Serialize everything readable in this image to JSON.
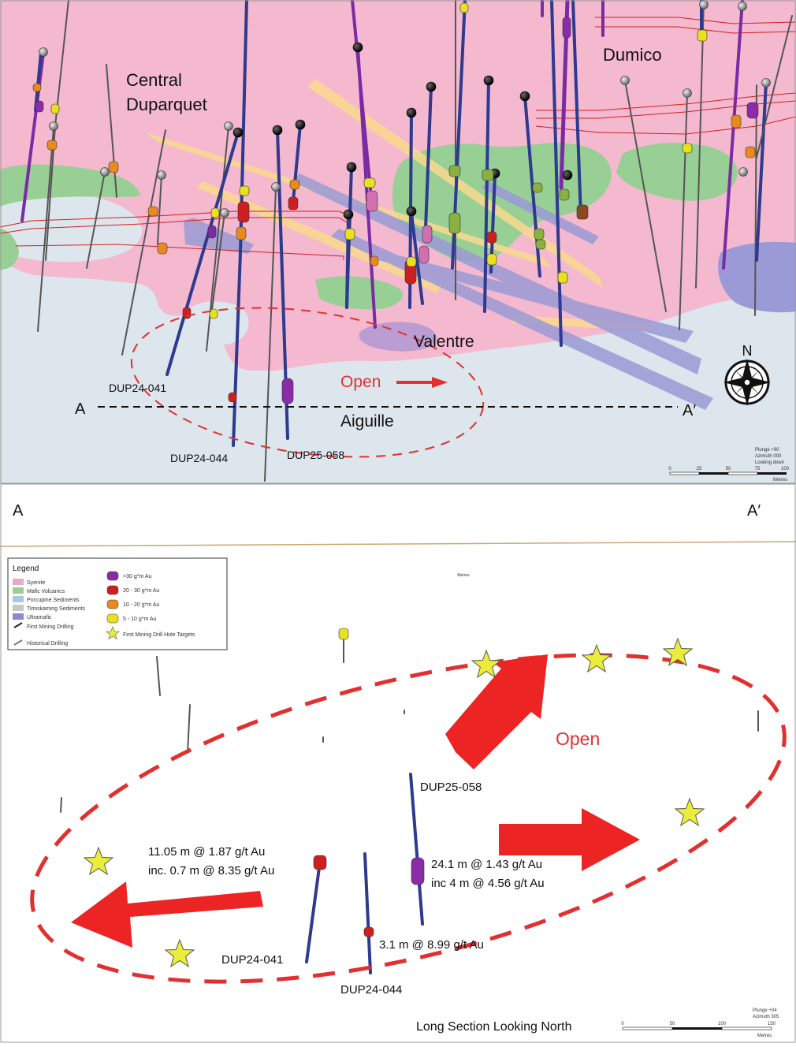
{
  "plan_view": {
    "area_labels": {
      "central_line1": "Central",
      "central_line2": "Duparquet",
      "dumico": "Dumico",
      "valentre": "Valentre",
      "aiguille": "Aiguille"
    },
    "open_label": "Open",
    "section_line": {
      "start_label": "A",
      "end_label": "A′"
    },
    "hole_labels": {
      "h041": "DUP24-041",
      "h044": "DUP24-044",
      "h058": "DUP25-058"
    },
    "north_label": "N",
    "view_info": {
      "line1": "Plunge +90",
      "line2": "Azimuth 000",
      "line3": "Looking down"
    },
    "scale_bar": {
      "ticks": [
        "0",
        "25",
        "50",
        "75",
        "100"
      ],
      "unit": "Metres"
    },
    "colors": {
      "syenite": "#f4b8cf",
      "mafic": "#98cf95",
      "sediment": "#dce6ec",
      "ultramafic": "#9a9ad6",
      "dyke": "#fbd98e",
      "structure": "#d42020",
      "open": "#e23030",
      "drill_blue": "#2d3a8f",
      "drill_purple": "#7a2ba3"
    }
  },
  "section_view": {
    "corner_labels": {
      "left": "A",
      "right": "A′"
    },
    "metres_small": "Metres",
    "legend": {
      "title": "Legend",
      "geology": [
        {
          "label": "Syenite",
          "color": "#e8a8c8"
        },
        {
          "label": "Mafic Volcanics",
          "color": "#98cf95"
        },
        {
          "label": "Porcupine Sediments",
          "color": "#a8c8e0"
        },
        {
          "label": "Timiskaming Sediments",
          "color": "#c8c8c8"
        },
        {
          "label": "Ultramafic",
          "color": "#8a8ad0"
        }
      ],
      "drilling": [
        {
          "label": "First Mining Drilling",
          "color": "#222222"
        },
        {
          "label": "Historical Drilling",
          "color": "#777777"
        }
      ],
      "grades": [
        {
          "label": ">30 g*m Au",
          "color": "#8a2ba8"
        },
        {
          "label": "20 - 30 g*m Au",
          "color": "#cc2020"
        },
        {
          "label": "10 - 20 g*m Au",
          "color": "#e88a20"
        },
        {
          "label": "5 - 10 g*m Au",
          "color": "#e8e020"
        }
      ],
      "target": {
        "label": "First Mining Drill Hole Targets",
        "color": "#ecec3a"
      }
    },
    "open_label": "Open",
    "hole_labels": {
      "h058": "DUP25-058",
      "h041": "DUP24-041",
      "h044": "DUP24-044"
    },
    "intercepts": {
      "h041_line1": "11.05 m @ 1.87 g/t Au",
      "h041_line2": "inc. 0.7 m @ 8.35 g/t Au",
      "h058_line1": "24.1 m @ 1.43 g/t Au",
      "h058_line2": "inc 4 m @ 4.56 g/t Au",
      "h044": "3.1 m @ 8.99 g/t Au"
    },
    "caption": "Long Section Looking North",
    "view_info": {
      "line1": "Plunge +04",
      "line2": "Azimuth 305"
    },
    "scale_bar": {
      "ticks": [
        "0",
        "50",
        "100",
        "150"
      ],
      "unit": "Metres"
    }
  }
}
